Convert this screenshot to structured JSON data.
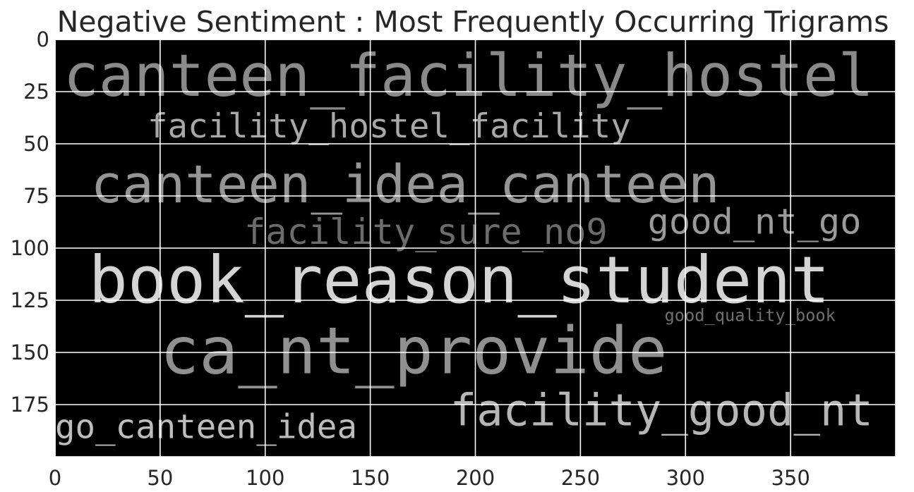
{
  "chart_data": {
    "type": "wordcloud",
    "title": "Negative Sentiment : Most Frequently Occurring Trigrams",
    "xlim": [
      0,
      400
    ],
    "ylim": [
      200,
      0
    ],
    "xticks": [
      0,
      50,
      100,
      150,
      200,
      250,
      300,
      350
    ],
    "yticks": [
      0,
      25,
      50,
      75,
      100,
      125,
      150,
      175
    ],
    "grid": true,
    "background": "#000000",
    "words": [
      {
        "text": "canteen_facility_hostel",
        "x": 4,
        "y": 27,
        "size": 28,
        "color": "#8a8a8a"
      },
      {
        "text": "facility_hostel_facility",
        "x": 44,
        "y": 47,
        "size": 16,
        "color": "#a8a8a8"
      },
      {
        "text": "canteen_idea_canteen",
        "x": 17,
        "y": 78,
        "size": 25,
        "color": "#959595"
      },
      {
        "text": "facility_sure_no9",
        "x": 90,
        "y": 98,
        "size": 17,
        "color": "#6c6c6c"
      },
      {
        "text": "good_nt_go",
        "x": 282,
        "y": 93,
        "size": 17,
        "color": "#9a9a9a"
      },
      {
        "text": "book_reason_student",
        "x": 16,
        "y": 126,
        "size": 31,
        "color": "#d4d4d4"
      },
      {
        "text": "good_quality_book",
        "x": 290,
        "y": 135,
        "size": 8,
        "color": "#707070"
      },
      {
        "text": "ca_nt_provide",
        "x": 50,
        "y": 160,
        "size": 31,
        "color": "#909090"
      },
      {
        "text": "facility_good_nt",
        "x": 188,
        "y": 185,
        "size": 21,
        "color": "#b6b6b6"
      },
      {
        "text": "go_canteen_idea",
        "x": 0,
        "y": 191,
        "size": 16,
        "color": "#bdbdbd"
      }
    ]
  }
}
